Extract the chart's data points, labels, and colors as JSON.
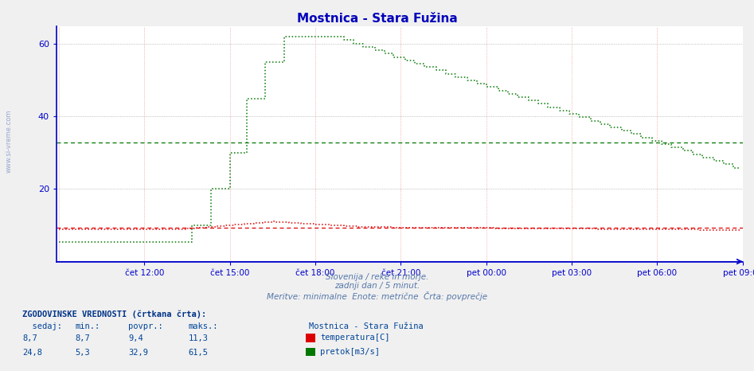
{
  "title": "Mostnica - Stara Fužina",
  "title_color": "#0000bb",
  "background_color": "#f0f0f0",
  "plot_bg_color": "#ffffff",
  "ymin": 0,
  "ymax": 65,
  "yticks": [
    20,
    40,
    60
  ],
  "x_labels": [
    "čet 12:00",
    "čet 15:00",
    "čet 18:00",
    "čet 21:00",
    "pet 00:00",
    "pet 03:00",
    "pet 06:00",
    "pet 09:00"
  ],
  "subtitle1": "Slovenija / reke in morje.",
  "subtitle2": "zadnji dan / 5 minut.",
  "subtitle3": "Meritve: minimalne  Enote: metrične  Črta: povprečje",
  "legend_title": "Mostnica - Stara Fužina",
  "temp_label": "temperatura[C]",
  "flow_label": "pretok[m3/s]",
  "temp_avg_line": 9.4,
  "flow_avg_line": 32.9,
  "red_color": "#dd0000",
  "green_color": "#007700",
  "blue_color": "#0000cc",
  "left_margin_text": "www.si-vreme.com",
  "n_points": 288,
  "stats_header": "ZGODOVINSKE VREDNOSTI (črtkana črta):",
  "col_headers": "  sedaj:    min.:   povpr.:   maks.:",
  "temp_row": "     8,7      8,7       9,4      11,3",
  "flow_row": "    24,8      5,3      32,9      61,5"
}
